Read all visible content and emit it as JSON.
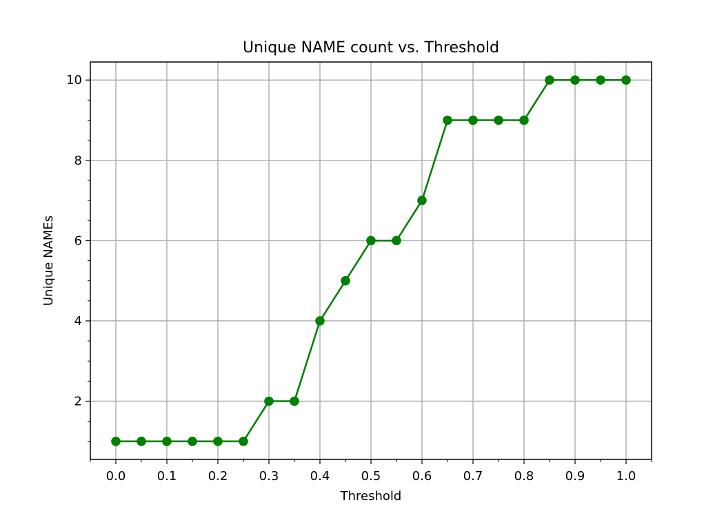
{
  "chart_data": {
    "type": "line",
    "title": "Unique NAME count vs. Threshold",
    "xlabel": "Threshold",
    "ylabel": "Unique NAMEs",
    "xlim": [
      -0.05,
      1.05
    ],
    "ylim": [
      0.55,
      10.45
    ],
    "x_ticks": [
      0.0,
      0.1,
      0.2,
      0.3,
      0.4,
      0.5,
      0.6,
      0.7,
      0.8,
      0.9,
      1.0
    ],
    "x_tick_labels": [
      "0.0",
      "0.1",
      "0.2",
      "0.3",
      "0.4",
      "0.5",
      "0.6",
      "0.7",
      "0.8",
      "0.9",
      "1.0"
    ],
    "y_ticks": [
      2,
      4,
      6,
      8,
      10
    ],
    "y_tick_labels": [
      "2",
      "4",
      "6",
      "8",
      "10"
    ],
    "grid": true,
    "marker": "circle",
    "series": [
      {
        "color": "#008000",
        "x": [
          0.0,
          0.05,
          0.1,
          0.15,
          0.2,
          0.25,
          0.3,
          0.35,
          0.4,
          0.45,
          0.5,
          0.55,
          0.6,
          0.65,
          0.7,
          0.75,
          0.8,
          0.85,
          0.9,
          0.95,
          1.0
        ],
        "y": [
          1,
          1,
          1,
          1,
          1,
          1,
          2,
          2,
          4,
          5,
          6,
          6,
          7,
          9,
          9,
          9,
          9,
          10,
          10,
          10,
          10
        ]
      }
    ]
  }
}
